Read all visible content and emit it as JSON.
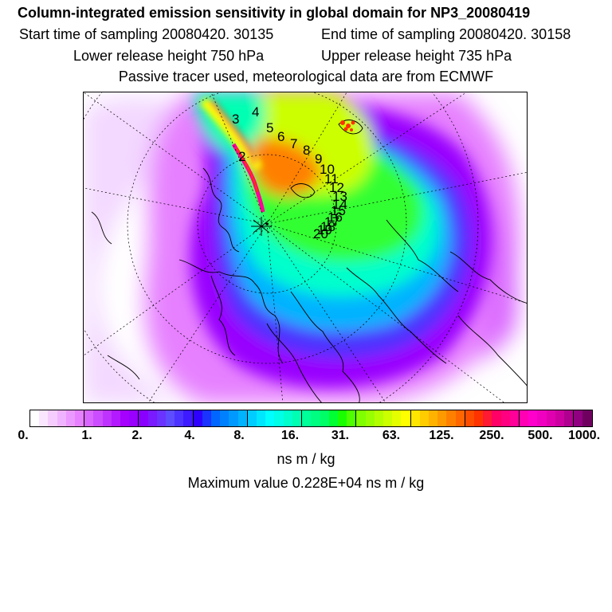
{
  "title": "Column-integrated emission sensitivity in global domain for NP3_20080419",
  "sampling": {
    "start_label": "Start time of sampling 20080420. 30135",
    "end_label": "End time of sampling 20080420. 30158"
  },
  "release": {
    "lower_label": "Lower release height  750 hPa",
    "upper_label": "Upper release height  735 hPa"
  },
  "tracer_note": "Passive tracer used, meteorological data are from ECMWF",
  "trajectory_labels": [
    "2",
    "3",
    "4",
    "5",
    "6",
    "7",
    "8",
    "9",
    "10",
    "11",
    "12",
    "13",
    "14",
    "15",
    "16",
    "17",
    "18",
    "19",
    "20"
  ],
  "colorbar": {
    "ticks": [
      "0.",
      "1.",
      "2.",
      "4.",
      "8.",
      "16.",
      "31.",
      "63.",
      "125.",
      "250.",
      "500.",
      "1000."
    ],
    "colors": [
      "#ffffff",
      "#fbe6ff",
      "#f6ccff",
      "#f0b3ff",
      "#eb99ff",
      "#e680ff",
      "#d966ff",
      "#cc4dff",
      "#bf33ff",
      "#b31aff",
      "#a600ff",
      "#9900ff",
      "#8a00ff",
      "#7a1aff",
      "#6b33ff",
      "#5c4dff",
      "#4d33ff",
      "#3d1aff",
      "#2e00ff",
      "#1a33ff",
      "#0066ff",
      "#0080ff",
      "#0099ff",
      "#00b3ff",
      "#00ccff",
      "#00e6ff",
      "#00ffff",
      "#00ffe6",
      "#00ffcc",
      "#00ffb3",
      "#00ff99",
      "#00ff80",
      "#00ff66",
      "#00ff33",
      "#1aff00",
      "#4dff00",
      "#80ff00",
      "#99ff00",
      "#b3ff00",
      "#ccff00",
      "#e6ff00",
      "#ffff00",
      "#ffe600",
      "#ffcc00",
      "#ffb300",
      "#ff9900",
      "#ff8000",
      "#ff6600",
      "#ff4d00",
      "#ff3300",
      "#ff1a33",
      "#ff0066",
      "#ff0080",
      "#ff0099",
      "#ff00b3",
      "#ff00cc",
      "#f000c0",
      "#e000b0",
      "#cc00a0",
      "#b00090",
      "#900080",
      "#700060"
    ]
  },
  "units": "ns m / kg",
  "maximum": "Maximum value  0.228E+04 ns m / kg"
}
